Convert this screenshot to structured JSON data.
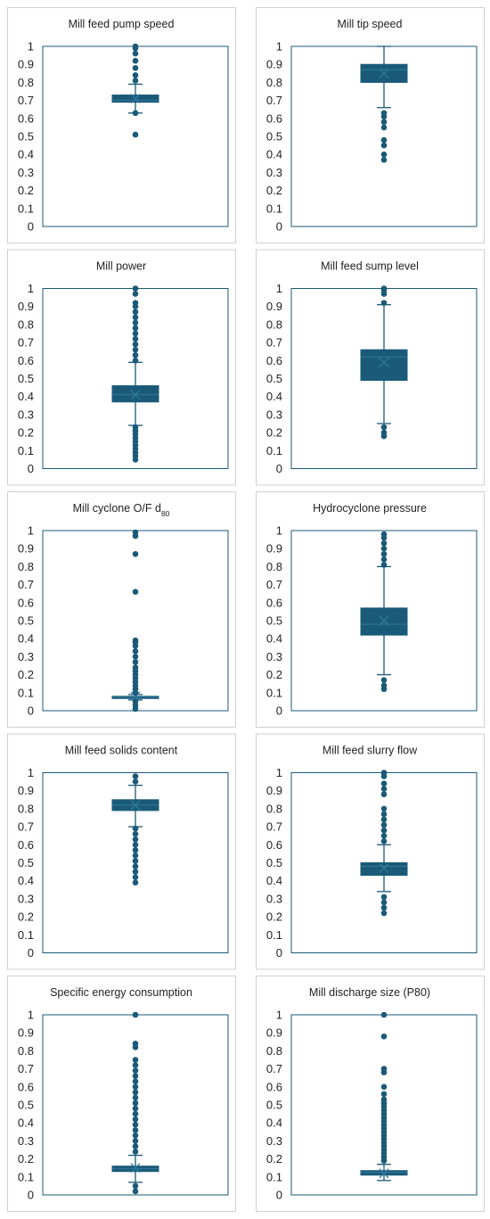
{
  "style": {
    "box_color": "#1a5a78",
    "panel_border": "#d0d0d0",
    "axis_color": "#1a5a78",
    "text_color": "#222222"
  },
  "y_ticks": [
    "0",
    "0.1",
    "0.2",
    "0.3",
    "0.4",
    "0.5",
    "0.6",
    "0.7",
    "0.8",
    "0.9",
    "1"
  ],
  "chart_data": [
    {
      "type": "box",
      "title": "Mill feed pump speed",
      "title_sub": "",
      "ylim": [
        0,
        1
      ],
      "q1": 0.69,
      "median": 0.7,
      "q3": 0.73,
      "mean": 0.71,
      "whisker_low": 0.63,
      "whisker_high": 0.79,
      "outliers": [
        0.51,
        0.63,
        0.81,
        0.84,
        0.88,
        0.92,
        0.96,
        0.99,
        1.0
      ]
    },
    {
      "type": "box",
      "title": "Mill tip speed",
      "title_sub": "",
      "ylim": [
        0,
        1
      ],
      "q1": 0.8,
      "median": 0.87,
      "q3": 0.9,
      "mean": 0.85,
      "whisker_low": 0.66,
      "whisker_high": 1.0,
      "outliers": [
        0.37,
        0.4,
        0.45,
        0.48,
        0.55,
        0.58,
        0.61,
        0.63
      ]
    },
    {
      "type": "box",
      "title": "Mill power",
      "title_sub": "",
      "ylim": [
        0,
        1
      ],
      "q1": 0.37,
      "median": 0.41,
      "q3": 0.46,
      "mean": 0.41,
      "whisker_low": 0.24,
      "whisker_high": 0.59,
      "outliers": [
        0.05,
        0.07,
        0.09,
        0.11,
        0.13,
        0.15,
        0.17,
        0.19,
        0.21,
        0.23,
        0.6,
        0.63,
        0.66,
        0.69,
        0.72,
        0.75,
        0.78,
        0.81,
        0.84,
        0.87,
        0.9,
        0.92,
        0.97,
        1.0
      ]
    },
    {
      "type": "box",
      "title": "Mill feed sump level",
      "title_sub": "",
      "ylim": [
        0,
        1
      ],
      "q1": 0.49,
      "median": 0.62,
      "q3": 0.66,
      "mean": 0.59,
      "whisker_low": 0.25,
      "whisker_high": 0.91,
      "outliers": [
        0.18,
        0.2,
        0.23,
        0.92,
        0.97,
        0.99,
        1.0
      ]
    },
    {
      "type": "box",
      "title": "Mill cyclone O/F d",
      "title_sub": "80",
      "ylim": [
        0,
        1
      ],
      "q1": 0.07,
      "median": 0.075,
      "q3": 0.08,
      "mean": 0.08,
      "whisker_low": 0.06,
      "whisker_high": 0.09,
      "outliers": [
        0.01,
        0.03,
        0.05,
        0.1,
        0.12,
        0.14,
        0.16,
        0.18,
        0.2,
        0.22,
        0.24,
        0.27,
        0.3,
        0.33,
        0.36,
        0.38,
        0.39,
        0.66,
        0.87,
        0.97,
        0.99
      ]
    },
    {
      "type": "box",
      "title": "Hydrocyclone pressure",
      "title_sub": "",
      "ylim": [
        0,
        1
      ],
      "q1": 0.42,
      "median": 0.48,
      "q3": 0.57,
      "mean": 0.5,
      "whisker_low": 0.2,
      "whisker_high": 0.8,
      "outliers": [
        0.12,
        0.14,
        0.17,
        0.81,
        0.84,
        0.87,
        0.9,
        0.93,
        0.96,
        0.98
      ]
    },
    {
      "type": "box",
      "title": "Mill feed solids content",
      "title_sub": "",
      "ylim": [
        0,
        1
      ],
      "q1": 0.79,
      "median": 0.82,
      "q3": 0.85,
      "mean": 0.82,
      "whisker_low": 0.7,
      "whisker_high": 0.93,
      "outliers": [
        0.39,
        0.42,
        0.45,
        0.48,
        0.51,
        0.54,
        0.57,
        0.6,
        0.63,
        0.66,
        0.69,
        0.95,
        0.98
      ]
    },
    {
      "type": "box",
      "title": "Mill feed slurry flow",
      "title_sub": "",
      "ylim": [
        0,
        1
      ],
      "q1": 0.43,
      "median": 0.48,
      "q3": 0.5,
      "mean": 0.47,
      "whisker_low": 0.34,
      "whisker_high": 0.6,
      "outliers": [
        0.22,
        0.25,
        0.28,
        0.31,
        0.62,
        0.65,
        0.68,
        0.71,
        0.74,
        0.77,
        0.8,
        0.88,
        0.91,
        0.94,
        0.98,
        1.0
      ]
    },
    {
      "type": "box",
      "title": "Specific energy consumption",
      "title_sub": "",
      "ylim": [
        0,
        1
      ],
      "q1": 0.13,
      "median": 0.145,
      "q3": 0.16,
      "mean": 0.15,
      "whisker_low": 0.07,
      "whisker_high": 0.22,
      "outliers": [
        0.02,
        0.05,
        0.24,
        0.27,
        0.3,
        0.33,
        0.36,
        0.39,
        0.42,
        0.45,
        0.48,
        0.51,
        0.54,
        0.57,
        0.6,
        0.63,
        0.66,
        0.69,
        0.72,
        0.75,
        0.82,
        0.84,
        1.0
      ]
    },
    {
      "type": "box",
      "title": "Mill discharge size (P80)",
      "title_sub": "",
      "ylim": [
        0,
        1
      ],
      "q1": 0.11,
      "median": 0.125,
      "q3": 0.135,
      "mean": 0.12,
      "whisker_low": 0.08,
      "whisker_high": 0.17,
      "outliers": [
        0.19,
        0.21,
        0.23,
        0.25,
        0.27,
        0.29,
        0.31,
        0.33,
        0.35,
        0.37,
        0.39,
        0.41,
        0.43,
        0.45,
        0.47,
        0.49,
        0.51,
        0.53,
        0.56,
        0.6,
        0.68,
        0.7,
        0.88,
        1.0
      ]
    }
  ]
}
